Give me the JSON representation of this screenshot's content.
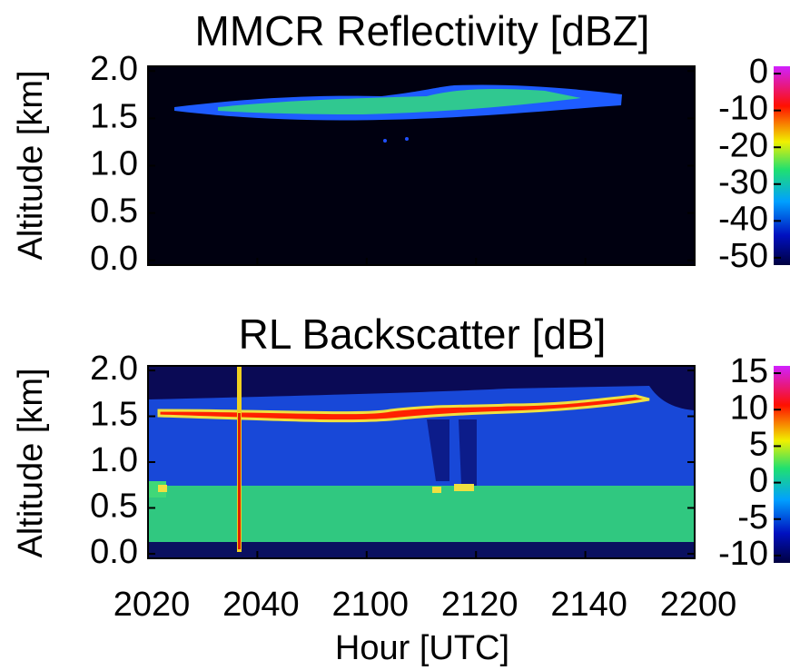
{
  "chart_data": [
    {
      "type": "heatmap",
      "title": "MMCR Reflectivity [dBZ]",
      "y_label": "Altitude [km]",
      "ylim": [
        -0.05,
        2.05
      ],
      "yticks": [
        {
          "value": 0,
          "label": "0.0"
        },
        0.5,
        {
          "value": 1,
          "label": "1.0"
        },
        1.5,
        {
          "value": 2,
          "label": "2.0"
        }
      ],
      "colorbar": {
        "clim": [
          -52,
          2
        ],
        "ticks": [
          -50,
          -40,
          -30,
          -20,
          -10,
          0
        ]
      }
    },
    {
      "type": "heatmap",
      "title": "RL Backscatter [dB]",
      "y_label": "Altitude [km]",
      "x_label": "Hour [UTC]",
      "categories": [
        "2020",
        "2040",
        "2100",
        "2120",
        "2140",
        "2200"
      ],
      "ylim": [
        -0.05,
        2.05
      ],
      "yticks": [
        {
          "value": 0,
          "label": "0.0"
        },
        0.5,
        {
          "value": 1,
          "label": "1.0"
        },
        1.5,
        {
          "value": 2,
          "label": "2.0"
        }
      ],
      "colorbar": {
        "clim": [
          -11,
          16
        ],
        "ticks": [
          -10,
          -5,
          0,
          5,
          10,
          15
        ]
      }
    }
  ]
}
